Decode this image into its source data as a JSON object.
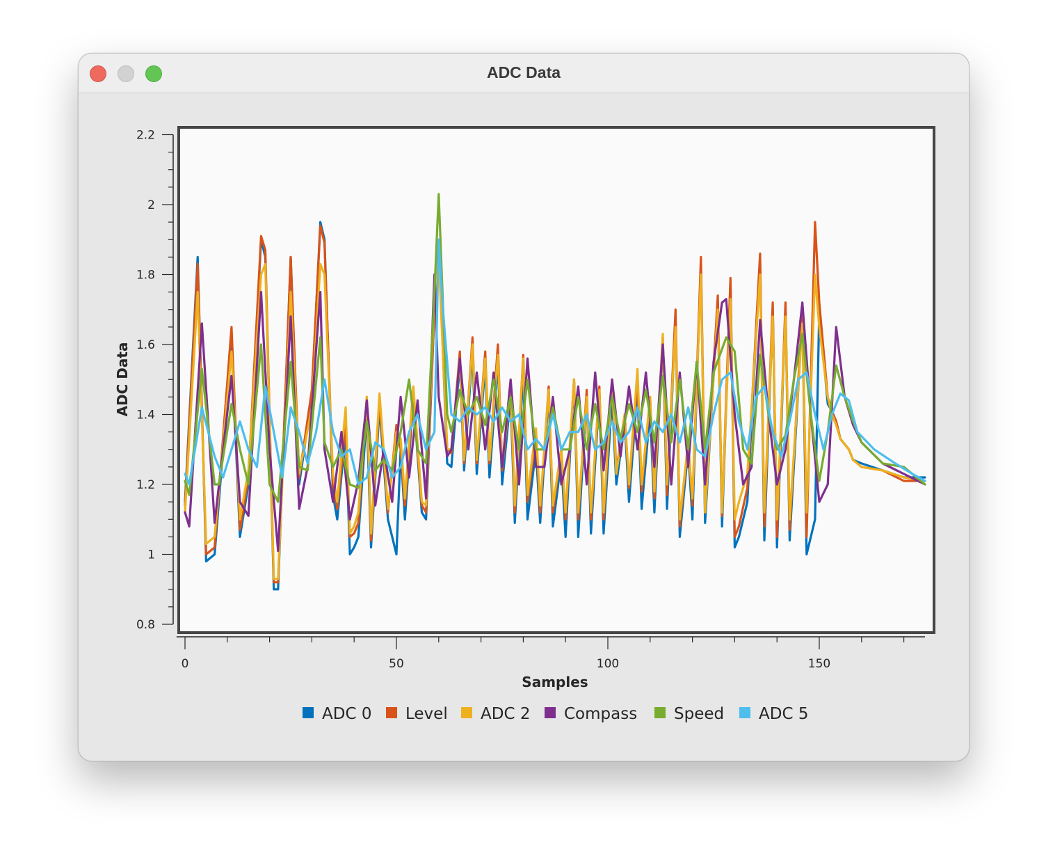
{
  "window": {
    "title": "ADC Data"
  },
  "colors": {
    "ADC 0": "#0072bd",
    "Level": "#d95319",
    "ADC 2": "#edb120",
    "Compass": "#7e2f8e",
    "Speed": "#77ac30",
    "ADC 5": "#4dbeee"
  },
  "chart_data": {
    "type": "line",
    "xlabel": "Samples",
    "ylabel": "ADC Data",
    "xlim": [
      -2,
      175
    ],
    "ylim": [
      0.78,
      2.2
    ],
    "xticks": [
      0,
      50,
      100,
      150
    ],
    "yticks": [
      0.8,
      1,
      1.2,
      1.4,
      1.6,
      1.8,
      2,
      2.2
    ],
    "ytick_labels": [
      "0.8",
      "1",
      "1.2",
      "1.4",
      "1.6",
      "1.8",
      "2",
      "2.2"
    ],
    "grid": false,
    "legend": "bottom",
    "series": [
      {
        "name": "ADC 0",
        "x": [
          0,
          3,
          5,
          7,
          11,
          13,
          15,
          18,
          19,
          21,
          22,
          25,
          27,
          30,
          32,
          33,
          35,
          36,
          38,
          39,
          40,
          41,
          43,
          44,
          46,
          48,
          50,
          51,
          52,
          54,
          56,
          57,
          59,
          60,
          62,
          63,
          65,
          66,
          68,
          69,
          71,
          72,
          74,
          75,
          77,
          78,
          80,
          81,
          83,
          84,
          86,
          87,
          89,
          90,
          92,
          93,
          95,
          96,
          98,
          99,
          101,
          102,
          104,
          105,
          107,
          108,
          110,
          111,
          113,
          114,
          116,
          117,
          119,
          120,
          122,
          123,
          126,
          127,
          129,
          130,
          131,
          133,
          136,
          137,
          139,
          140,
          142,
          143,
          146,
          147,
          149,
          150,
          152,
          153,
          154,
          155,
          157,
          158,
          160,
          165,
          170,
          175
        ],
        "values": [
          1.15,
          1.85,
          0.98,
          1.0,
          1.6,
          1.05,
          1.2,
          1.9,
          1.85,
          0.9,
          0.9,
          1.85,
          1.2,
          1.45,
          1.95,
          1.9,
          1.17,
          1.1,
          1.35,
          1.0,
          1.02,
          1.05,
          1.4,
          1.02,
          1.42,
          1.1,
          1.0,
          1.3,
          1.1,
          1.45,
          1.12,
          1.1,
          1.7,
          1.9,
          1.26,
          1.25,
          1.55,
          1.24,
          1.58,
          1.23,
          1.54,
          1.22,
          1.55,
          1.2,
          1.45,
          1.09,
          1.52,
          1.1,
          1.3,
          1.09,
          1.46,
          1.08,
          1.27,
          1.05,
          1.5,
          1.05,
          1.45,
          1.06,
          1.46,
          1.06,
          1.45,
          1.2,
          1.38,
          1.15,
          1.47,
          1.13,
          1.41,
          1.12,
          1.62,
          1.13,
          1.67,
          1.05,
          1.3,
          1.1,
          1.83,
          1.09,
          1.72,
          1.08,
          1.78,
          1.02,
          1.05,
          1.15,
          1.84,
          1.04,
          1.7,
          1.02,
          1.7,
          1.04,
          1.68,
          1.0,
          1.1,
          1.7,
          1.43,
          1.41,
          1.38,
          1.33,
          1.3,
          1.27,
          1.26,
          1.24,
          1.22,
          1.22
        ]
      },
      {
        "name": "Level",
        "x": [
          0,
          3,
          5,
          7,
          11,
          13,
          15,
          18,
          19,
          21,
          22,
          25,
          27,
          30,
          32,
          33,
          35,
          36,
          38,
          39,
          40,
          41,
          43,
          44,
          46,
          48,
          50,
          51,
          52,
          54,
          56,
          57,
          59,
          60,
          62,
          63,
          65,
          66,
          68,
          69,
          71,
          72,
          74,
          75,
          77,
          78,
          80,
          81,
          83,
          84,
          86,
          87,
          89,
          90,
          92,
          93,
          95,
          96,
          98,
          99,
          101,
          102,
          104,
          105,
          107,
          108,
          110,
          111,
          113,
          114,
          116,
          117,
          119,
          120,
          122,
          123,
          126,
          127,
          129,
          130,
          131,
          133,
          136,
          137,
          139,
          140,
          142,
          143,
          146,
          147,
          149,
          150,
          152,
          153,
          154,
          155,
          157,
          158,
          160,
          165,
          170,
          175
        ],
        "values": [
          1.14,
          1.83,
          1.0,
          1.02,
          1.65,
          1.07,
          1.22,
          1.91,
          1.87,
          0.92,
          0.92,
          1.85,
          1.22,
          1.47,
          1.94,
          1.89,
          1.2,
          1.13,
          1.37,
          1.05,
          1.06,
          1.09,
          1.45,
          1.04,
          1.44,
          1.12,
          1.37,
          1.3,
          1.14,
          1.45,
          1.14,
          1.12,
          1.7,
          1.87,
          1.3,
          1.29,
          1.58,
          1.26,
          1.62,
          1.26,
          1.58,
          1.26,
          1.6,
          1.24,
          1.48,
          1.12,
          1.57,
          1.15,
          1.34,
          1.12,
          1.48,
          1.12,
          1.3,
          1.1,
          1.5,
          1.1,
          1.47,
          1.1,
          1.48,
          1.1,
          1.5,
          1.24,
          1.4,
          1.19,
          1.5,
          1.18,
          1.45,
          1.16,
          1.62,
          1.17,
          1.7,
          1.08,
          1.32,
          1.14,
          1.85,
          1.12,
          1.74,
          1.11,
          1.79,
          1.05,
          1.08,
          1.19,
          1.86,
          1.08,
          1.72,
          1.05,
          1.72,
          1.07,
          1.7,
          1.05,
          1.95,
          1.72,
          1.45,
          1.41,
          1.38,
          1.33,
          1.3,
          1.27,
          1.25,
          1.24,
          1.21,
          1.21
        ]
      },
      {
        "name": "ADC 2",
        "x": [
          0,
          3,
          5,
          7,
          11,
          13,
          15,
          18,
          19,
          21,
          22,
          25,
          27,
          30,
          32,
          33,
          35,
          36,
          38,
          39,
          40,
          41,
          43,
          44,
          46,
          48,
          50,
          51,
          52,
          54,
          56,
          57,
          59,
          60,
          62,
          63,
          65,
          66,
          68,
          69,
          71,
          72,
          74,
          75,
          77,
          78,
          80,
          81,
          83,
          84,
          86,
          87,
          89,
          90,
          92,
          93,
          95,
          96,
          98,
          99,
          101,
          102,
          104,
          105,
          107,
          108,
          110,
          111,
          113,
          114,
          116,
          117,
          119,
          120,
          122,
          123,
          126,
          127,
          129,
          130,
          131,
          133,
          136,
          137,
          139,
          140,
          142,
          143,
          146,
          147,
          149,
          150,
          152,
          153,
          154,
          155,
          157,
          158,
          160,
          165,
          170,
          175
        ],
        "values": [
          1.12,
          1.75,
          1.03,
          1.05,
          1.58,
          1.1,
          1.24,
          1.8,
          1.83,
          0.93,
          0.93,
          1.75,
          1.23,
          1.42,
          1.83,
          1.8,
          1.23,
          1.15,
          1.42,
          1.06,
          1.08,
          1.12,
          1.45,
          1.06,
          1.46,
          1.13,
          1.35,
          1.33,
          1.16,
          1.48,
          1.15,
          1.14,
          1.75,
          1.85,
          1.3,
          1.3,
          1.56,
          1.27,
          1.6,
          1.27,
          1.56,
          1.27,
          1.57,
          1.25,
          1.48,
          1.14,
          1.56,
          1.17,
          1.36,
          1.14,
          1.47,
          1.14,
          1.3,
          1.12,
          1.5,
          1.12,
          1.45,
          1.12,
          1.47,
          1.12,
          1.5,
          1.23,
          1.4,
          1.2,
          1.53,
          1.2,
          1.45,
          1.18,
          1.63,
          1.2,
          1.65,
          1.1,
          1.32,
          1.16,
          1.8,
          1.12,
          1.7,
          1.12,
          1.73,
          1.1,
          1.15,
          1.23,
          1.8,
          1.12,
          1.68,
          1.1,
          1.68,
          1.1,
          1.66,
          1.12,
          1.8,
          1.65,
          1.45,
          1.4,
          1.37,
          1.33,
          1.3,
          1.27,
          1.25,
          1.24,
          1.22,
          1.21
        ]
      },
      {
        "name": "Compass",
        "x": [
          0,
          1,
          4,
          7,
          11,
          13,
          15,
          18,
          20,
          22,
          25,
          27,
          29,
          32,
          33,
          35,
          37,
          39,
          41,
          43,
          45,
          47,
          49,
          51,
          53,
          55,
          57,
          59,
          60,
          62,
          63,
          65,
          67,
          69,
          71,
          73,
          75,
          77,
          79,
          81,
          83,
          85,
          87,
          89,
          91,
          93,
          95,
          97,
          99,
          101,
          103,
          105,
          107,
          109,
          111,
          113,
          115,
          117,
          119,
          121,
          123,
          125,
          127,
          128,
          130,
          132,
          134,
          136,
          138,
          140,
          142,
          144,
          146,
          148,
          150,
          152,
          154,
          156,
          158,
          160,
          165,
          170,
          175
        ],
        "values": [
          1.12,
          1.08,
          1.66,
          1.09,
          1.51,
          1.15,
          1.11,
          1.75,
          1.3,
          1.01,
          1.68,
          1.13,
          1.25,
          1.75,
          1.3,
          1.15,
          1.35,
          1.1,
          1.21,
          1.44,
          1.14,
          1.3,
          1.15,
          1.45,
          1.22,
          1.44,
          1.16,
          1.8,
          1.45,
          1.28,
          1.3,
          1.56,
          1.3,
          1.52,
          1.3,
          1.52,
          1.25,
          1.5,
          1.2,
          1.56,
          1.25,
          1.25,
          1.45,
          1.2,
          1.3,
          1.48,
          1.2,
          1.52,
          1.24,
          1.5,
          1.28,
          1.48,
          1.3,
          1.52,
          1.25,
          1.6,
          1.2,
          1.52,
          1.25,
          1.55,
          1.2,
          1.55,
          1.72,
          1.73,
          1.4,
          1.2,
          1.25,
          1.67,
          1.4,
          1.2,
          1.3,
          1.5,
          1.72,
          1.4,
          1.15,
          1.2,
          1.65,
          1.45,
          1.37,
          1.32,
          1.26,
          1.23,
          1.2
        ]
      },
      {
        "name": "Speed",
        "x": [
          0,
          1,
          4,
          7,
          8,
          11,
          13,
          15,
          18,
          20,
          22,
          25,
          27,
          29,
          32,
          33,
          35,
          37,
          39,
          41,
          43,
          45,
          47,
          49,
          51,
          53,
          55,
          57,
          59,
          60,
          62,
          63,
          65,
          67,
          69,
          71,
          73,
          75,
          77,
          79,
          81,
          83,
          85,
          87,
          89,
          91,
          93,
          95,
          97,
          99,
          101,
          103,
          105,
          107,
          109,
          111,
          113,
          115,
          117,
          119,
          121,
          123,
          125,
          128,
          130,
          132,
          134,
          136,
          138,
          140,
          142,
          144,
          146,
          148,
          150,
          152,
          154,
          156,
          158,
          160,
          165,
          170,
          175
        ],
        "values": [
          1.21,
          1.17,
          1.53,
          1.2,
          1.2,
          1.43,
          1.3,
          1.2,
          1.6,
          1.2,
          1.15,
          1.55,
          1.25,
          1.24,
          1.62,
          1.32,
          1.25,
          1.3,
          1.2,
          1.19,
          1.38,
          1.24,
          1.27,
          1.24,
          1.35,
          1.5,
          1.3,
          1.26,
          1.75,
          2.03,
          1.4,
          1.35,
          1.47,
          1.4,
          1.45,
          1.37,
          1.5,
          1.35,
          1.45,
          1.3,
          1.5,
          1.3,
          1.3,
          1.42,
          1.3,
          1.3,
          1.45,
          1.3,
          1.43,
          1.3,
          1.45,
          1.33,
          1.43,
          1.35,
          1.47,
          1.32,
          1.51,
          1.32,
          1.5,
          1.3,
          1.55,
          1.3,
          1.52,
          1.62,
          1.58,
          1.3,
          1.26,
          1.57,
          1.4,
          1.3,
          1.34,
          1.5,
          1.63,
          1.4,
          1.21,
          1.35,
          1.54,
          1.45,
          1.38,
          1.32,
          1.26,
          1.25,
          1.2
        ]
      },
      {
        "name": "ADC 5",
        "x": [
          0,
          1,
          4,
          7,
          9,
          11,
          13,
          15,
          17,
          19,
          21,
          23,
          25,
          27,
          29,
          31,
          33,
          35,
          37,
          39,
          41,
          43,
          45,
          47,
          49,
          51,
          53,
          55,
          57,
          59,
          60,
          61,
          63,
          65,
          67,
          69,
          71,
          73,
          75,
          77,
          79,
          81,
          83,
          85,
          87,
          89,
          91,
          93,
          95,
          97,
          99,
          101,
          103,
          105,
          107,
          109,
          111,
          113,
          115,
          117,
          119,
          121,
          123,
          125,
          127,
          129,
          131,
          133,
          135,
          137,
          139,
          141,
          143,
          145,
          147,
          149,
          151,
          153,
          155,
          157,
          159,
          163,
          168,
          172,
          175
        ],
        "values": [
          1.23,
          1.2,
          1.42,
          1.28,
          1.22,
          1.3,
          1.38,
          1.3,
          1.25,
          1.48,
          1.35,
          1.22,
          1.42,
          1.35,
          1.26,
          1.35,
          1.5,
          1.35,
          1.28,
          1.3,
          1.2,
          1.22,
          1.32,
          1.3,
          1.22,
          1.25,
          1.35,
          1.4,
          1.3,
          1.35,
          1.9,
          1.7,
          1.4,
          1.38,
          1.42,
          1.4,
          1.42,
          1.38,
          1.42,
          1.38,
          1.4,
          1.3,
          1.33,
          1.3,
          1.4,
          1.3,
          1.35,
          1.35,
          1.4,
          1.3,
          1.32,
          1.38,
          1.32,
          1.35,
          1.42,
          1.32,
          1.38,
          1.35,
          1.4,
          1.32,
          1.42,
          1.3,
          1.28,
          1.4,
          1.5,
          1.52,
          1.38,
          1.3,
          1.45,
          1.48,
          1.35,
          1.28,
          1.38,
          1.5,
          1.52,
          1.4,
          1.3,
          1.4,
          1.46,
          1.44,
          1.35,
          1.3,
          1.26,
          1.23,
          1.21
        ]
      }
    ]
  }
}
